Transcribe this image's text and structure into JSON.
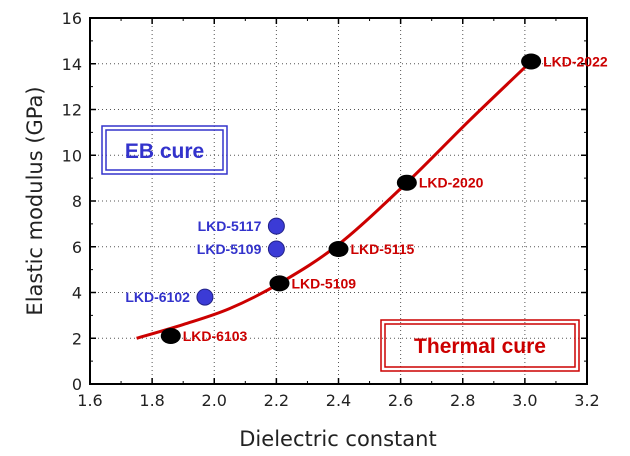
{
  "chart_data": {
    "type": "scatter",
    "xlabel": "Dielectric constant",
    "ylabel": "Elastic modulus (GPa)",
    "xlim": [
      1.6,
      3.2
    ],
    "ylim": [
      0,
      16
    ],
    "x_ticks": [
      "1.6",
      "1.8",
      "2.0",
      "2.2",
      "2.4",
      "2.6",
      "2.8",
      "3.0",
      "3.2"
    ],
    "y_ticks": [
      "0",
      "2",
      "4",
      "6",
      "8",
      "10",
      "12",
      "14",
      "16"
    ],
    "grid": true,
    "colors": {
      "thermal": "#cc0000",
      "eb": "#3333cc",
      "thermal_marker": "#000000",
      "eb_marker": "#3b3bd6"
    },
    "series": [
      {
        "key": "thermal",
        "points": [
          {
            "label": "LKD-6103",
            "x": 1.86,
            "y": 2.1
          },
          {
            "label": "LKD-5109",
            "x": 2.21,
            "y": 4.4
          },
          {
            "label": "LKD-5115",
            "x": 2.4,
            "y": 5.9
          },
          {
            "label": "LKD-2020",
            "x": 2.62,
            "y": 8.8
          },
          {
            "label": "LKD-2022",
            "x": 3.02,
            "y": 14.1
          }
        ],
        "trend": [
          [
            1.75,
            2.0
          ],
          [
            1.9,
            2.6
          ],
          [
            2.05,
            3.3
          ],
          [
            2.21,
            4.4
          ],
          [
            2.4,
            6.1
          ],
          [
            2.62,
            8.8
          ],
          [
            2.82,
            11.5
          ],
          [
            3.02,
            14.1
          ]
        ]
      },
      {
        "key": "eb",
        "points": [
          {
            "label": "LKD-6102",
            "x": 1.97,
            "y": 3.8
          },
          {
            "label": "LKD-5109",
            "x": 2.2,
            "y": 5.9
          },
          {
            "label": "LKD-5117",
            "x": 2.2,
            "y": 6.9
          }
        ]
      }
    ],
    "legend_boxes": {
      "eb": "EB cure",
      "thermal": "Thermal cure"
    }
  }
}
